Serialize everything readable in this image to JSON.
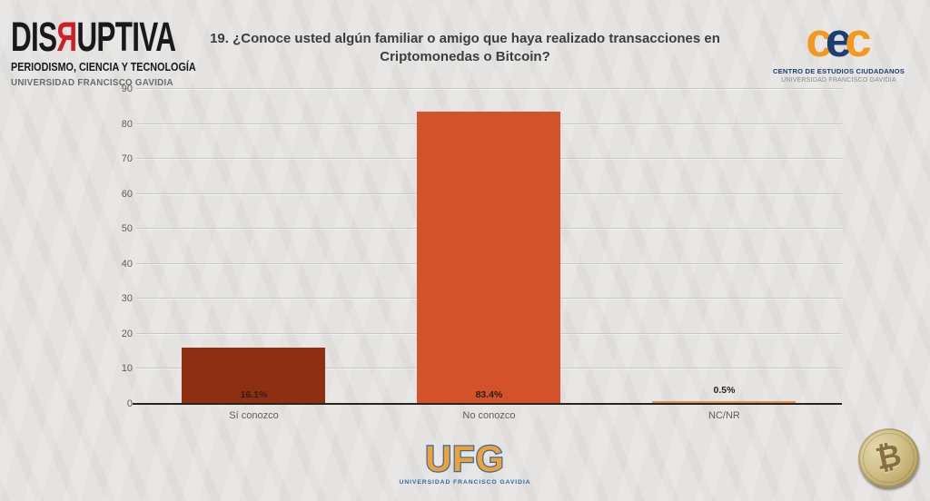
{
  "header": {
    "disruptiva_logo": {
      "word_pre": "DIS",
      "word_r": "Я",
      "word_post": "UPTIVA",
      "line2": "PERIODISMO, CIENCIA Y TECNOLOGÍA",
      "line3": "UNIVERSIDAD FRANCISCO GAVIDIA"
    },
    "title_line1": "19. ¿Conoce usted algún familiar o amigo que haya realizado transacciones en",
    "title_line2": "Criptomonedas o Bitcoin?",
    "cec_logo": {
      "letter1": "c",
      "letter2": "e",
      "letter3": "c",
      "line1": "CENTRO DE ESTUDIOS CIUDADANOS",
      "line2": "UNIVERSIDAD FRANCISCO GAVIDIA"
    }
  },
  "footer": {
    "ufg_logo": {
      "text": "UFG",
      "subtitle": "UNIVERSIDAD FRANCISCO GAVIDIA"
    },
    "bitcoin_symbol": "₿"
  },
  "chart_data": {
    "type": "bar",
    "title": "19. ¿Conoce usted algún familiar o amigo que haya realizado transacciones en Criptomonedas o Bitcoin?",
    "categories": [
      "Sí conozco",
      "No conozco",
      "NC/NR"
    ],
    "values": [
      16.1,
      83.4,
      0.5
    ],
    "value_labels": [
      "16.1%",
      "83.4%",
      "0.5%"
    ],
    "bar_colors": [
      "#8e2e13",
      "#d4522a",
      "#df9350"
    ],
    "ylim": [
      0,
      90
    ],
    "ytick_step": 10,
    "yticks": [
      0,
      10,
      20,
      30,
      40,
      50,
      60,
      70,
      80,
      90
    ],
    "grid": true,
    "legend": "none",
    "xlabel": "",
    "ylabel": "",
    "gridline_color": "#c9c8c4",
    "axis_color": "#28251f",
    "label_color": "#5f5e5c"
  }
}
